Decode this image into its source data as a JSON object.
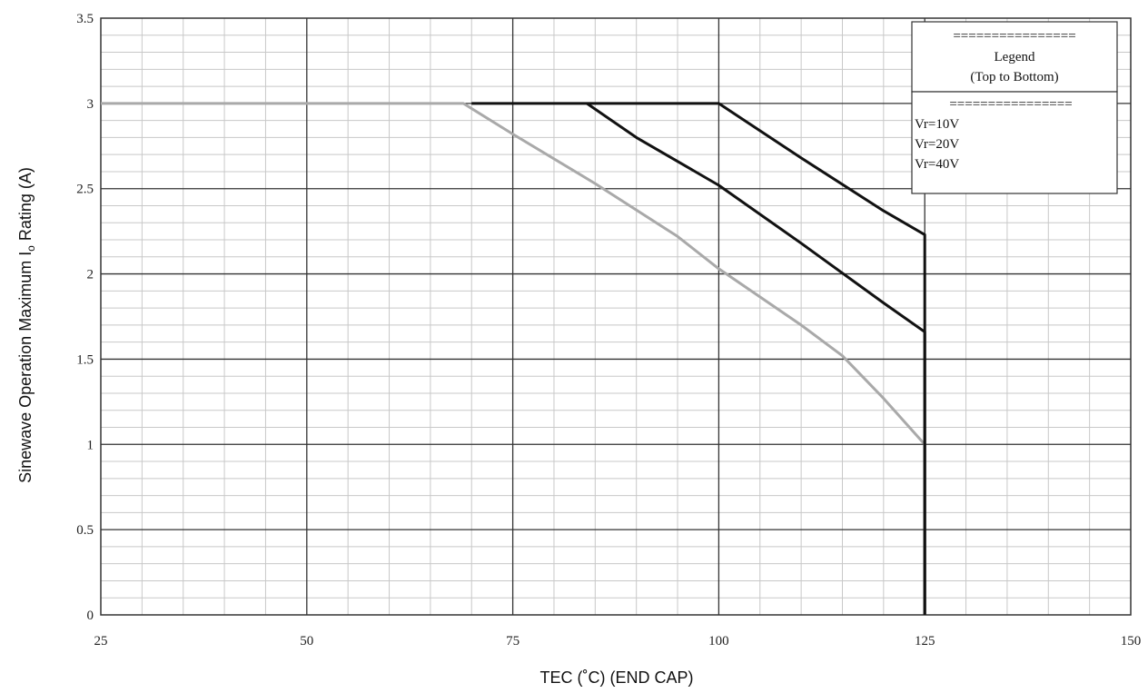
{
  "chart_data": {
    "type": "line",
    "title": "",
    "xlabel": "TEC (˚C) (END CAP)",
    "ylabel_main": "Sinewave Operation Maximum I",
    "ylabel_sub": "o",
    "ylabel_tail": " Rating (A)",
    "xlim": [
      25,
      150
    ],
    "ylim": [
      0,
      3.5
    ],
    "x_ticks": [
      25,
      50,
      75,
      100,
      125,
      150
    ],
    "y_ticks": [
      0,
      0.5,
      1,
      1.5,
      2,
      2.5,
      3,
      3.5
    ],
    "x_tick_labels": [
      "25",
      "50",
      "75",
      "100",
      "125",
      "150"
    ],
    "y_tick_labels": [
      "0",
      "0.5",
      "1",
      "1.5",
      "2",
      "2.5",
      "3",
      "3.5"
    ],
    "grid": true,
    "legend": {
      "position": "top-right",
      "title_line1": "Legend",
      "title_line2": "(Top to Bottom)",
      "separator": "================"
    },
    "series": [
      {
        "name": "Vr=10V",
        "color": "#111111",
        "points": [
          [
            70,
            3
          ],
          [
            100,
            3
          ],
          [
            110,
            2.68
          ],
          [
            120,
            2.37
          ],
          [
            125,
            2.23
          ],
          [
            125,
            0
          ]
        ]
      },
      {
        "name": "Vr=20V",
        "color": "#111111",
        "points": [
          [
            84,
            3
          ],
          [
            90,
            2.8
          ],
          [
            100,
            2.52
          ],
          [
            110,
            2.18
          ],
          [
            120,
            1.83
          ],
          [
            125,
            1.66
          ],
          [
            125,
            0
          ]
        ]
      },
      {
        "name": "Vr=40V",
        "color": "#a9a9a9",
        "points": [
          [
            25,
            3
          ],
          [
            69,
            3
          ],
          [
            75,
            2.82
          ],
          [
            85,
            2.53
          ],
          [
            95,
            2.22
          ],
          [
            100,
            2.03
          ],
          [
            110,
            1.7
          ],
          [
            115,
            1.52
          ],
          [
            120,
            1.27
          ],
          [
            125,
            1.0
          ],
          [
            125,
            0
          ]
        ]
      }
    ]
  }
}
